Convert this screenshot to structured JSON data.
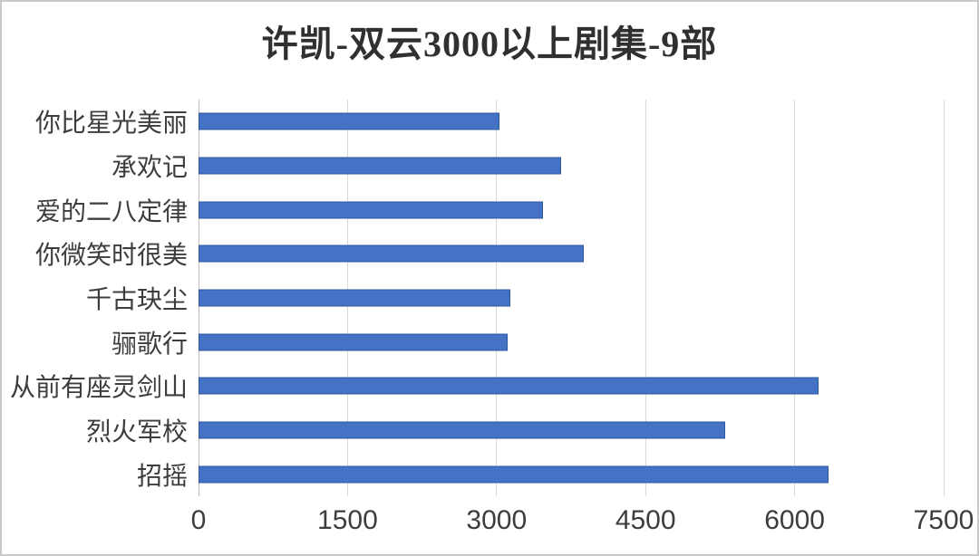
{
  "chart_data": {
    "type": "bar",
    "orientation": "horizontal",
    "title": "许凯-双云3000以上剧集-9部",
    "categories": [
      "你比星光美丽",
      "承欢记",
      "爱的二八定律",
      "你微笑时很美",
      "千古玦尘",
      "骊歌行",
      "从前有座灵剑山",
      "烈火军校",
      "招摇"
    ],
    "values": [
      3030,
      3650,
      3470,
      3880,
      3140,
      3110,
      6240,
      5300,
      6340
    ],
    "xlabel": "",
    "ylabel": "",
    "xlim": [
      0,
      7500
    ],
    "xticks": [
      0,
      1500,
      3000,
      4500,
      6000,
      7500
    ],
    "grid": "vertical-only",
    "legend": "none",
    "colors": {
      "bar_fill": "#4472c4",
      "bar_border": "#2e579e",
      "gridline": "#d9d9d9",
      "axis_line": "#bfbfbf",
      "label_text": "#3d3d3d",
      "title_text": "#303030",
      "background": "#ffffff",
      "frame_border": "#c9c9c9"
    }
  }
}
